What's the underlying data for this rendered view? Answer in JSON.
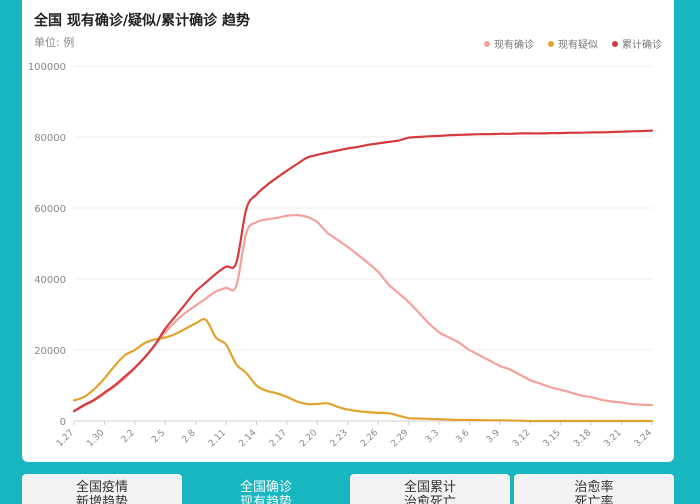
{
  "header": {
    "title": "全国 现有确诊/疑似/累计确诊 趋势",
    "unit": "单位: 例"
  },
  "colors": {
    "current_confirmed": "#f4a09b",
    "current_suspected": "#e3a22d",
    "cumulative_confirmed": "#d63a3d"
  },
  "chart_data": {
    "type": "line",
    "ylim": [
      0,
      100000
    ],
    "yticks": [
      "0",
      "20000",
      "40000",
      "60000",
      "80000",
      "100000"
    ],
    "x_tick_labels": [
      "1.27",
      "1.30",
      "2.2",
      "2.5",
      "2.8",
      "2.11",
      "2.14",
      "2.17",
      "2.20",
      "2.23",
      "2.26",
      "2.29",
      "3.3",
      "3.6",
      "3.9",
      "3.12",
      "3.15",
      "3.18",
      "3.21",
      "3.24"
    ],
    "x": [
      "1.27",
      "1.28",
      "1.29",
      "1.30",
      "1.31",
      "2.1",
      "2.2",
      "2.3",
      "2.4",
      "2.5",
      "2.6",
      "2.7",
      "2.8",
      "2.9",
      "2.10",
      "2.11",
      "2.12",
      "2.13",
      "2.14",
      "2.15",
      "2.16",
      "2.17",
      "2.18",
      "2.19",
      "2.20",
      "2.21",
      "2.22",
      "2.23",
      "2.24",
      "2.25",
      "2.26",
      "2.27",
      "2.28",
      "2.29",
      "3.1",
      "3.2",
      "3.3",
      "3.4",
      "3.5",
      "3.6",
      "3.7",
      "3.8",
      "3.9",
      "3.10",
      "3.11",
      "3.12",
      "3.13",
      "3.14",
      "3.15",
      "3.16",
      "3.17",
      "3.18",
      "3.19",
      "3.20",
      "3.21",
      "3.22",
      "3.23",
      "3.24"
    ],
    "series": [
      {
        "name": "现有确诊",
        "color": "#f4a09b",
        "values": [
          2700,
          4300,
          5800,
          7700,
          9800,
          12000,
          15000,
          18000,
          21500,
          25000,
          28000,
          30500,
          32500,
          34500,
          36500,
          37500,
          38000,
          53000,
          56000,
          56800,
          57200,
          57800,
          58000,
          57500,
          56000,
          53000,
          51000,
          49000,
          46800,
          44500,
          42000,
          38500,
          36000,
          33500,
          30500,
          27500,
          25000,
          23500,
          22000,
          20000,
          18500,
          17000,
          15500,
          14500,
          13000,
          11500,
          10500,
          9500,
          8800,
          8000,
          7200,
          6700,
          6000,
          5500,
          5200,
          4800,
          4600,
          4500
        ]
      },
      {
        "name": "现有疑似",
        "color": "#e3a22d",
        "values": [
          5800,
          6800,
          9000,
          12000,
          15500,
          18500,
          20000,
          22000,
          23000,
          23500,
          24500,
          26000,
          27500,
          28500,
          23500,
          21500,
          16000,
          13500,
          10000,
          8500,
          7800,
          6800,
          5500,
          4800,
          4800,
          5000,
          4000,
          3200,
          2800,
          2500,
          2300,
          2200,
          1500,
          800,
          700,
          600,
          500,
          400,
          300,
          300,
          250,
          200,
          200,
          150,
          100,
          0,
          0,
          0,
          0,
          0,
          0,
          0,
          0,
          0,
          0,
          0,
          0,
          0
        ]
      },
      {
        "name": "累计确诊",
        "color": "#d63a3d",
        "values": [
          2800,
          4500,
          6000,
          8000,
          10000,
          12500,
          15000,
          18000,
          21500,
          26000,
          29500,
          33000,
          36500,
          39000,
          41500,
          43500,
          44500,
          59800,
          63800,
          66400,
          68500,
          70500,
          72400,
          74200,
          75000,
          75600,
          76200,
          76800,
          77200,
          77800,
          78200,
          78600,
          79000,
          79800,
          80000,
          80200,
          80300,
          80500,
          80600,
          80700,
          80800,
          80800,
          80900,
          80900,
          81000,
          81000,
          81000,
          81100,
          81100,
          81200,
          81200,
          81300,
          81300,
          81400,
          81500,
          81600,
          81700,
          81800
        ]
      }
    ],
    "grid": true,
    "legend_position": "top-right"
  },
  "tabs": [
    {
      "line1": "全国疫情",
      "line2": "新增趋势",
      "active": false
    },
    {
      "line1": "全国确诊",
      "line2": "现有趋势",
      "active": true
    },
    {
      "line1": "全国累计",
      "line2": "治愈死亡",
      "active": false
    },
    {
      "line1": "治愈率",
      "line2": "死亡率",
      "active": false
    }
  ]
}
